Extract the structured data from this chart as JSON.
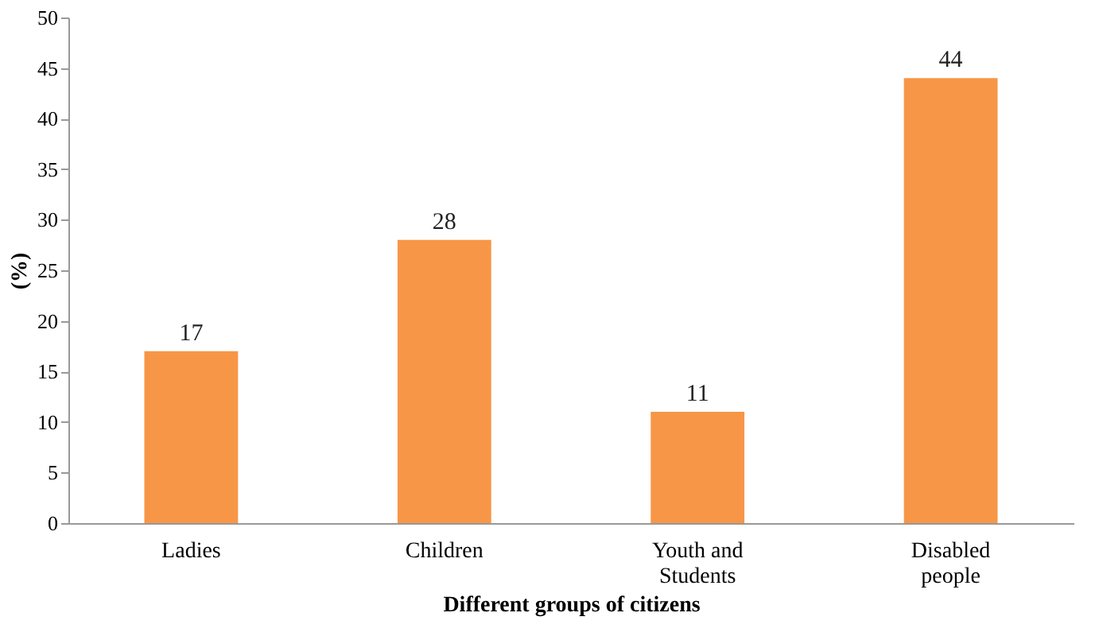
{
  "chart_data": {
    "type": "bar",
    "xlabel": "Different groups of citizens",
    "ylabel": "(%)",
    "categories": [
      "Ladies",
      "Children",
      "Youth and\nStudents",
      "Disabled\npeople"
    ],
    "values": [
      17,
      28,
      11,
      44
    ],
    "color": "#f79646",
    "ylim": [
      0,
      50
    ],
    "yticks": [
      0,
      5,
      10,
      15,
      20,
      25,
      30,
      35,
      40,
      45,
      50
    ],
    "data_labels": true
  }
}
